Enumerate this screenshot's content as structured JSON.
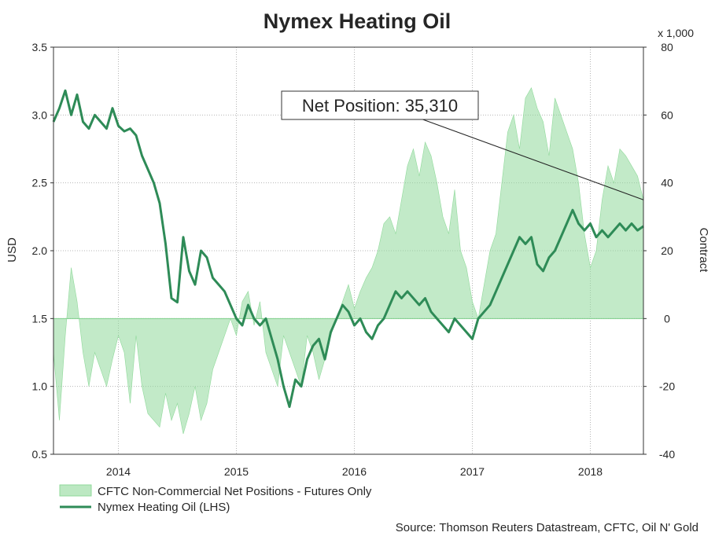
{
  "chart_data": {
    "type": "line",
    "title": "Nymex Heating Oil",
    "ylabel_left": "USD",
    "ylabel_right": "Contract",
    "right_axis_unit": "x 1,000",
    "y_left_lim": [
      0.5,
      3.5
    ],
    "y_left_ticks": [
      "0.5",
      "1.0",
      "1.5",
      "2.0",
      "2.5",
      "3.0",
      "3.5"
    ],
    "y_right_lim": [
      -40,
      80
    ],
    "y_right_ticks": [
      "-40",
      "-20",
      "0",
      "20",
      "40",
      "60",
      "80"
    ],
    "x_lim": [
      2013.45,
      2018.45
    ],
    "x_ticks": [
      "2014",
      "2015",
      "2016",
      "2017",
      "2018"
    ],
    "x_tick_positions": [
      2014.0,
      2015.0,
      2016.0,
      2017.0,
      2018.0
    ],
    "x_gridlines": [
      2014.0,
      2015.0,
      2016.0,
      2017.0,
      2018.0
    ],
    "grid": true,
    "legend_position": "bottom-left",
    "annotation": {
      "text": "Net Position: 35,310"
    },
    "series": [
      {
        "name": "CFTC Non-Commercial Net Positions - Futures Only",
        "kind": "area",
        "axis": "right",
        "color": "#8fd99a",
        "x": [
          2013.45,
          2013.5,
          2013.55,
          2013.6,
          2013.65,
          2013.7,
          2013.75,
          2013.8,
          2013.85,
          2013.9,
          2013.95,
          2014.0,
          2014.05,
          2014.1,
          2014.15,
          2014.2,
          2014.25,
          2014.3,
          2014.35,
          2014.4,
          2014.45,
          2014.5,
          2014.55,
          2014.6,
          2014.65,
          2014.7,
          2014.75,
          2014.8,
          2014.85,
          2014.9,
          2014.95,
          2015.0,
          2015.05,
          2015.1,
          2015.15,
          2015.2,
          2015.25,
          2015.3,
          2015.35,
          2015.4,
          2015.45,
          2015.5,
          2015.55,
          2015.6,
          2015.65,
          2015.7,
          2015.75,
          2015.8,
          2015.85,
          2015.9,
          2015.95,
          2016.0,
          2016.05,
          2016.1,
          2016.15,
          2016.2,
          2016.25,
          2016.3,
          2016.35,
          2016.4,
          2016.45,
          2016.5,
          2016.55,
          2016.6,
          2016.65,
          2016.7,
          2016.75,
          2016.8,
          2016.85,
          2016.9,
          2016.95,
          2017.0,
          2017.05,
          2017.1,
          2017.15,
          2017.2,
          2017.25,
          2017.3,
          2017.35,
          2017.4,
          2017.45,
          2017.5,
          2017.55,
          2017.6,
          2017.65,
          2017.7,
          2017.75,
          2017.8,
          2017.85,
          2017.9,
          2017.95,
          2018.0,
          2018.05,
          2018.1,
          2018.15,
          2018.2,
          2018.25,
          2018.3,
          2018.35,
          2018.4,
          2018.45
        ],
        "values": [
          -10,
          -30,
          -5,
          15,
          5,
          -10,
          -20,
          -10,
          -15,
          -20,
          -12,
          -5,
          -10,
          -25,
          -5,
          -20,
          -28,
          -30,
          -32,
          -22,
          -30,
          -25,
          -34,
          -28,
          -20,
          -30,
          -25,
          -15,
          -10,
          -5,
          0,
          -5,
          5,
          8,
          -2,
          5,
          -10,
          -15,
          -20,
          -5,
          -10,
          -15,
          -20,
          -5,
          -10,
          -18,
          -12,
          -5,
          0,
          5,
          10,
          3,
          8,
          12,
          15,
          20,
          28,
          30,
          25,
          35,
          45,
          50,
          42,
          52,
          48,
          40,
          30,
          25,
          38,
          20,
          15,
          5,
          0,
          10,
          20,
          25,
          40,
          55,
          60,
          50,
          65,
          68,
          62,
          58,
          48,
          65,
          60,
          55,
          50,
          40,
          25,
          15,
          20,
          35,
          45,
          40,
          50,
          48,
          45,
          42,
          35
        ]
      },
      {
        "name": "Nymex Heating Oil (LHS)",
        "kind": "line",
        "axis": "left",
        "color": "#2e8b57",
        "x": [
          2013.45,
          2013.5,
          2013.55,
          2013.6,
          2013.65,
          2013.7,
          2013.75,
          2013.8,
          2013.85,
          2013.9,
          2013.95,
          2014.0,
          2014.05,
          2014.1,
          2014.15,
          2014.2,
          2014.25,
          2014.3,
          2014.35,
          2014.4,
          2014.45,
          2014.5,
          2014.55,
          2014.6,
          2014.65,
          2014.7,
          2014.75,
          2014.8,
          2014.85,
          2014.9,
          2014.95,
          2015.0,
          2015.05,
          2015.1,
          2015.15,
          2015.2,
          2015.25,
          2015.3,
          2015.35,
          2015.4,
          2015.45,
          2015.5,
          2015.55,
          2015.6,
          2015.65,
          2015.7,
          2015.75,
          2015.8,
          2015.85,
          2015.9,
          2015.95,
          2016.0,
          2016.05,
          2016.1,
          2016.15,
          2016.2,
          2016.25,
          2016.3,
          2016.35,
          2016.4,
          2016.45,
          2016.5,
          2016.55,
          2016.6,
          2016.65,
          2016.7,
          2016.75,
          2016.8,
          2016.85,
          2016.9,
          2016.95,
          2017.0,
          2017.05,
          2017.1,
          2017.15,
          2017.2,
          2017.25,
          2017.3,
          2017.35,
          2017.4,
          2017.45,
          2017.5,
          2017.55,
          2017.6,
          2017.65,
          2017.7,
          2017.75,
          2017.8,
          2017.85,
          2017.9,
          2017.95,
          2018.0,
          2018.05,
          2018.1,
          2018.15,
          2018.2,
          2018.25,
          2018.3,
          2018.35,
          2018.4,
          2018.45
        ],
        "values": [
          2.95,
          3.05,
          3.18,
          3.0,
          3.15,
          2.95,
          2.9,
          3.0,
          2.95,
          2.9,
          3.05,
          2.92,
          2.88,
          2.9,
          2.85,
          2.7,
          2.6,
          2.5,
          2.35,
          2.05,
          1.65,
          1.62,
          2.1,
          1.85,
          1.75,
          2.0,
          1.95,
          1.8,
          1.75,
          1.7,
          1.6,
          1.5,
          1.45,
          1.6,
          1.5,
          1.45,
          1.5,
          1.35,
          1.2,
          1.0,
          0.85,
          1.05,
          1.0,
          1.2,
          1.3,
          1.35,
          1.2,
          1.4,
          1.5,
          1.6,
          1.55,
          1.45,
          1.5,
          1.4,
          1.35,
          1.45,
          1.5,
          1.6,
          1.7,
          1.65,
          1.7,
          1.65,
          1.6,
          1.65,
          1.55,
          1.5,
          1.45,
          1.4,
          1.5,
          1.45,
          1.4,
          1.35,
          1.5,
          1.55,
          1.6,
          1.7,
          1.8,
          1.9,
          2.0,
          2.1,
          2.05,
          2.1,
          1.9,
          1.85,
          1.95,
          2.0,
          2.1,
          2.2,
          2.3,
          2.2,
          2.15,
          2.2,
          2.1,
          2.15,
          2.1,
          2.15,
          2.2,
          2.15,
          2.2,
          2.15,
          2.18
        ]
      }
    ]
  },
  "source": "Source: Thomson Reuters Datastream, CFTC, Oil N' Gold"
}
